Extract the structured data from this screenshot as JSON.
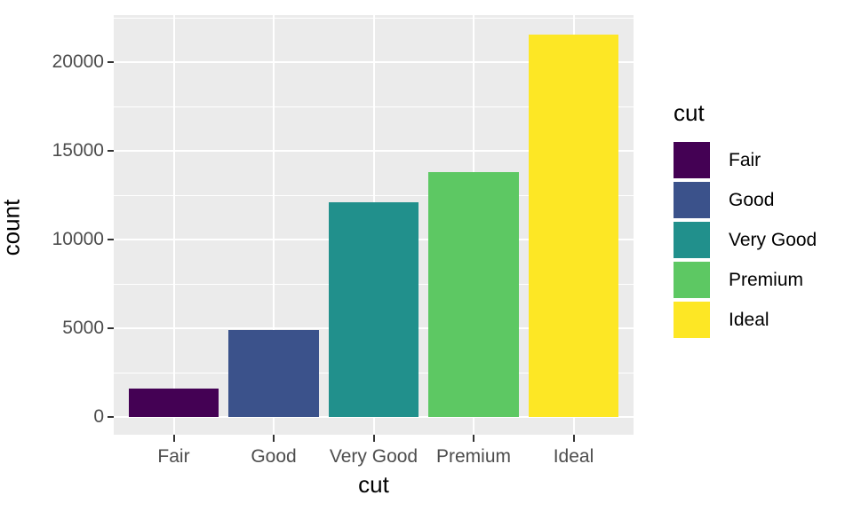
{
  "chart_data": {
    "type": "bar",
    "title": "",
    "xlabel": "cut",
    "ylabel": "count",
    "categories": [
      "Fair",
      "Good",
      "Very Good",
      "Premium",
      "Ideal"
    ],
    "values": [
      1610,
      4906,
      12082,
      13791,
      21551
    ],
    "colors": [
      "#440154",
      "#3B528B",
      "#21908C",
      "#5DC863",
      "#FDE725"
    ],
    "yticks": [
      0,
      5000,
      10000,
      15000,
      20000
    ],
    "minor_yticks": [
      2500,
      7500,
      12500,
      17500,
      22500
    ],
    "ylim": [
      -1077,
      22628
    ],
    "grid": "on",
    "panel_bg": "#EBEBEB",
    "grid_color": "#FFFFFF",
    "tick_color": "#333333",
    "tick_label_color": "#4D4D4D",
    "axis_title_color": "#000000",
    "legend": {
      "title": "cut",
      "position": "right",
      "entries": [
        "Fair",
        "Good",
        "Very Good",
        "Premium",
        "Ideal"
      ]
    }
  }
}
